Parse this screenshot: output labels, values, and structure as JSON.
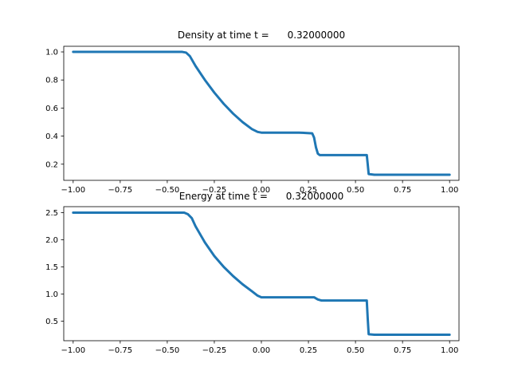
{
  "chart_data": [
    {
      "type": "line",
      "title": "Density at time t =      0.32000000",
      "xlabel": "",
      "ylabel": "",
      "xlim": [
        -1.05,
        1.05
      ],
      "ylim": [
        0.085,
        1.04
      ],
      "xticks": [
        -1.0,
        -0.75,
        -0.5,
        -0.25,
        0.0,
        0.25,
        0.5,
        0.75,
        1.0
      ],
      "xtick_labels": [
        "−1.00",
        "−0.75",
        "−0.50",
        "−0.25",
        "0.00",
        "0.25",
        "0.50",
        "0.75",
        "1.00"
      ],
      "yticks": [
        0.2,
        0.4,
        0.6,
        0.8,
        1.0
      ],
      "ytick_labels": [
        "0.2",
        "0.4",
        "0.6",
        "0.8",
        "1.0"
      ],
      "grid": false,
      "color": "#1f77b4",
      "series": [
        {
          "x": [
            -1.0,
            -0.42,
            -0.4,
            -0.38,
            -0.35,
            -0.3,
            -0.25,
            -0.2,
            -0.15,
            -0.1,
            -0.05,
            -0.02,
            0.0,
            0.1,
            0.2,
            0.27,
            0.28,
            0.29,
            0.3,
            0.31,
            0.4,
            0.5,
            0.56,
            0.565,
            0.57,
            0.6,
            0.8,
            1.0
          ],
          "values": [
            1.0,
            1.0,
            0.995,
            0.97,
            0.9,
            0.8,
            0.71,
            0.63,
            0.56,
            0.5,
            0.45,
            0.43,
            0.425,
            0.425,
            0.425,
            0.42,
            0.39,
            0.32,
            0.275,
            0.265,
            0.265,
            0.265,
            0.265,
            0.2,
            0.13,
            0.125,
            0.125,
            0.125
          ]
        }
      ]
    },
    {
      "type": "line",
      "title": "Energy at time t =      0.32000000",
      "xlabel": "",
      "ylabel": "",
      "xlim": [
        -1.05,
        1.05
      ],
      "ylim": [
        0.14,
        2.61
      ],
      "xticks": [
        -1.0,
        -0.75,
        -0.5,
        -0.25,
        0.0,
        0.25,
        0.5,
        0.75,
        1.0
      ],
      "xtick_labels": [
        "−1.00",
        "−0.75",
        "−0.50",
        "−0.25",
        "0.00",
        "0.25",
        "0.50",
        "0.75",
        "1.00"
      ],
      "yticks": [
        0.5,
        1.0,
        1.5,
        2.0,
        2.5
      ],
      "ytick_labels": [
        "0.5",
        "1.0",
        "1.5",
        "2.0",
        "2.5"
      ],
      "grid": false,
      "color": "#1f77b4",
      "series": [
        {
          "x": [
            -1.0,
            -0.41,
            -0.39,
            -0.37,
            -0.35,
            -0.3,
            -0.25,
            -0.2,
            -0.15,
            -0.1,
            -0.05,
            -0.02,
            0.0,
            0.1,
            0.2,
            0.28,
            0.3,
            0.32,
            0.4,
            0.5,
            0.56,
            0.565,
            0.57,
            0.6,
            0.8,
            1.0
          ],
          "values": [
            2.5,
            2.5,
            2.47,
            2.4,
            2.25,
            1.95,
            1.7,
            1.5,
            1.33,
            1.18,
            1.05,
            0.97,
            0.94,
            0.94,
            0.94,
            0.94,
            0.9,
            0.88,
            0.88,
            0.88,
            0.88,
            0.55,
            0.26,
            0.25,
            0.25,
            0.25
          ]
        }
      ]
    }
  ]
}
